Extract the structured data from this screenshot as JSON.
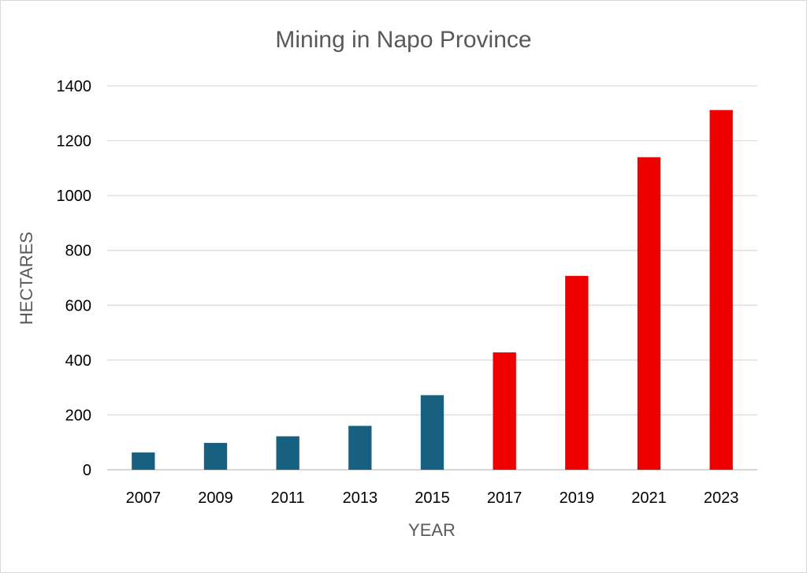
{
  "chart_data": {
    "type": "bar",
    "title": "Mining in Napo Province",
    "xlabel": "YEAR",
    "ylabel": "HECTARES",
    "categories": [
      "2007",
      "2009",
      "2011",
      "2013",
      "2015",
      "2017",
      "2019",
      "2021",
      "2023"
    ],
    "values": [
      63,
      98,
      122,
      160,
      272,
      428,
      707,
      1140,
      1312
    ],
    "bar_colors": [
      "#17607f",
      "#17607f",
      "#17607f",
      "#17607f",
      "#17607f",
      "#ee0000",
      "#ee0000",
      "#ee0000",
      "#ee0000"
    ],
    "ylim": [
      0,
      1400
    ],
    "yticks": [
      0,
      200,
      400,
      600,
      800,
      1000,
      1200,
      1400
    ],
    "grid": true,
    "legend": "none"
  }
}
